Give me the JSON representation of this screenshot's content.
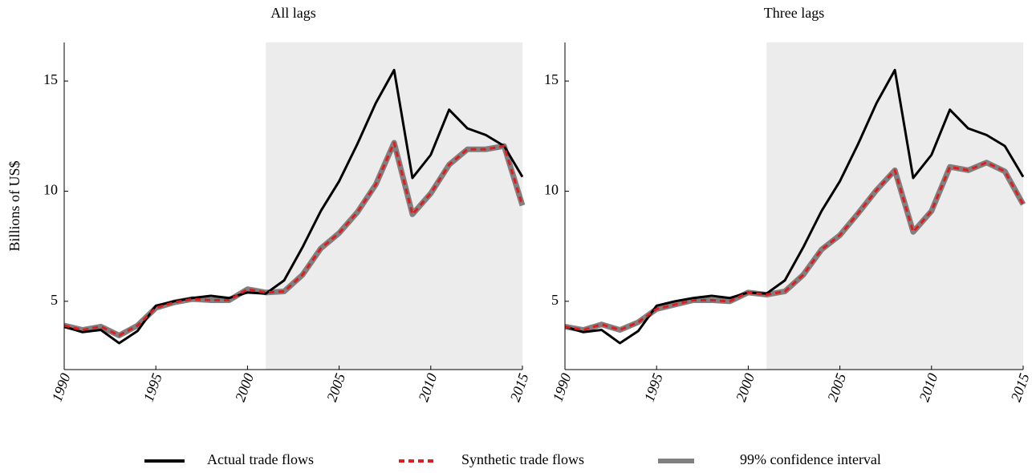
{
  "chart_data": [
    {
      "type": "line",
      "title": "All lags",
      "y_label": "Billions of US$",
      "x": [
        1990,
        1991,
        1992,
        1993,
        1994,
        1995,
        1996,
        1997,
        1998,
        1999,
        2000,
        2001,
        2002,
        2003,
        2004,
        2005,
        2006,
        2007,
        2008,
        2009,
        2010,
        2011,
        2012,
        2013,
        2014,
        2015
      ],
      "xlim": [
        1990,
        2015
      ],
      "xticks": [
        1990,
        1995,
        2000,
        2005,
        2010,
        2015
      ],
      "ylim": [
        1.9,
        16.75
      ],
      "yticks": [
        5,
        10,
        15
      ],
      "shaded_xlim": [
        2001,
        2015
      ],
      "shade_color": "#ececec",
      "series": [
        {
          "name": "99% confidence interval",
          "color": "#808080",
          "style": "band",
          "values": [
            3.9,
            3.7,
            3.85,
            3.45,
            3.9,
            4.7,
            4.95,
            5.1,
            5.05,
            5.05,
            5.55,
            5.4,
            5.45,
            6.2,
            7.4,
            8.1,
            9.05,
            10.3,
            12.2,
            8.95,
            9.9,
            11.2,
            11.9,
            11.9,
            12.05,
            9.35
          ]
        },
        {
          "name": "Actual trade flows",
          "color": "#000000",
          "style": "solid",
          "values": [
            3.85,
            3.6,
            3.7,
            3.1,
            3.65,
            4.8,
            5.0,
            5.15,
            5.25,
            5.15,
            5.4,
            5.35,
            5.95,
            7.45,
            9.1,
            10.45,
            12.15,
            14.0,
            15.5,
            10.6,
            11.65,
            13.7,
            12.85,
            12.55,
            12.05,
            10.65
          ]
        },
        {
          "name": "Synthetic trade flows",
          "color": "#e41a1c",
          "style": "dashed",
          "values": [
            3.9,
            3.7,
            3.85,
            3.45,
            3.9,
            4.7,
            4.95,
            5.1,
            5.05,
            5.05,
            5.55,
            5.4,
            5.45,
            6.2,
            7.4,
            8.1,
            9.05,
            10.3,
            12.2,
            8.95,
            9.9,
            11.2,
            11.9,
            11.9,
            12.05,
            9.35
          ]
        }
      ]
    },
    {
      "type": "line",
      "title": "Three lags",
      "x": [
        1990,
        1991,
        1992,
        1993,
        1994,
        1995,
        1996,
        1997,
        1998,
        1999,
        2000,
        2001,
        2002,
        2003,
        2004,
        2005,
        2006,
        2007,
        2008,
        2009,
        2010,
        2011,
        2012,
        2013,
        2014,
        2015
      ],
      "xlim": [
        1990,
        2015
      ],
      "xticks": [
        1990,
        1995,
        2000,
        2005,
        2010,
        2015
      ],
      "ylim": [
        1.9,
        16.75
      ],
      "yticks": [
        5,
        10,
        15
      ],
      "shaded_xlim": [
        2001,
        2015
      ],
      "shade_color": "#ececec",
      "series": [
        {
          "color": "#808080",
          "style": "band",
          "values": [
            3.85,
            3.7,
            3.95,
            3.7,
            4.05,
            4.65,
            4.85,
            5.05,
            5.05,
            5.0,
            5.4,
            5.3,
            5.45,
            6.2,
            7.35,
            8.0,
            9.0,
            10.05,
            10.95,
            8.15,
            9.1,
            11.1,
            10.95,
            11.3,
            10.9,
            9.4
          ]
        },
        {
          "color": "#000000",
          "style": "solid",
          "values": [
            3.85,
            3.6,
            3.7,
            3.1,
            3.65,
            4.8,
            5.0,
            5.15,
            5.25,
            5.15,
            5.4,
            5.35,
            5.95,
            7.45,
            9.1,
            10.45,
            12.15,
            14.0,
            15.5,
            10.6,
            11.65,
            13.7,
            12.85,
            12.55,
            12.05,
            10.65
          ]
        },
        {
          "color": "#e41a1c",
          "style": "dashed",
          "values": [
            3.85,
            3.7,
            3.95,
            3.7,
            4.05,
            4.65,
            4.85,
            5.05,
            5.05,
            5.0,
            5.4,
            5.3,
            5.45,
            6.2,
            7.35,
            8.0,
            9.0,
            10.05,
            10.95,
            8.15,
            9.1,
            11.1,
            10.95,
            11.3,
            10.9,
            9.4
          ]
        }
      ]
    }
  ]
}
